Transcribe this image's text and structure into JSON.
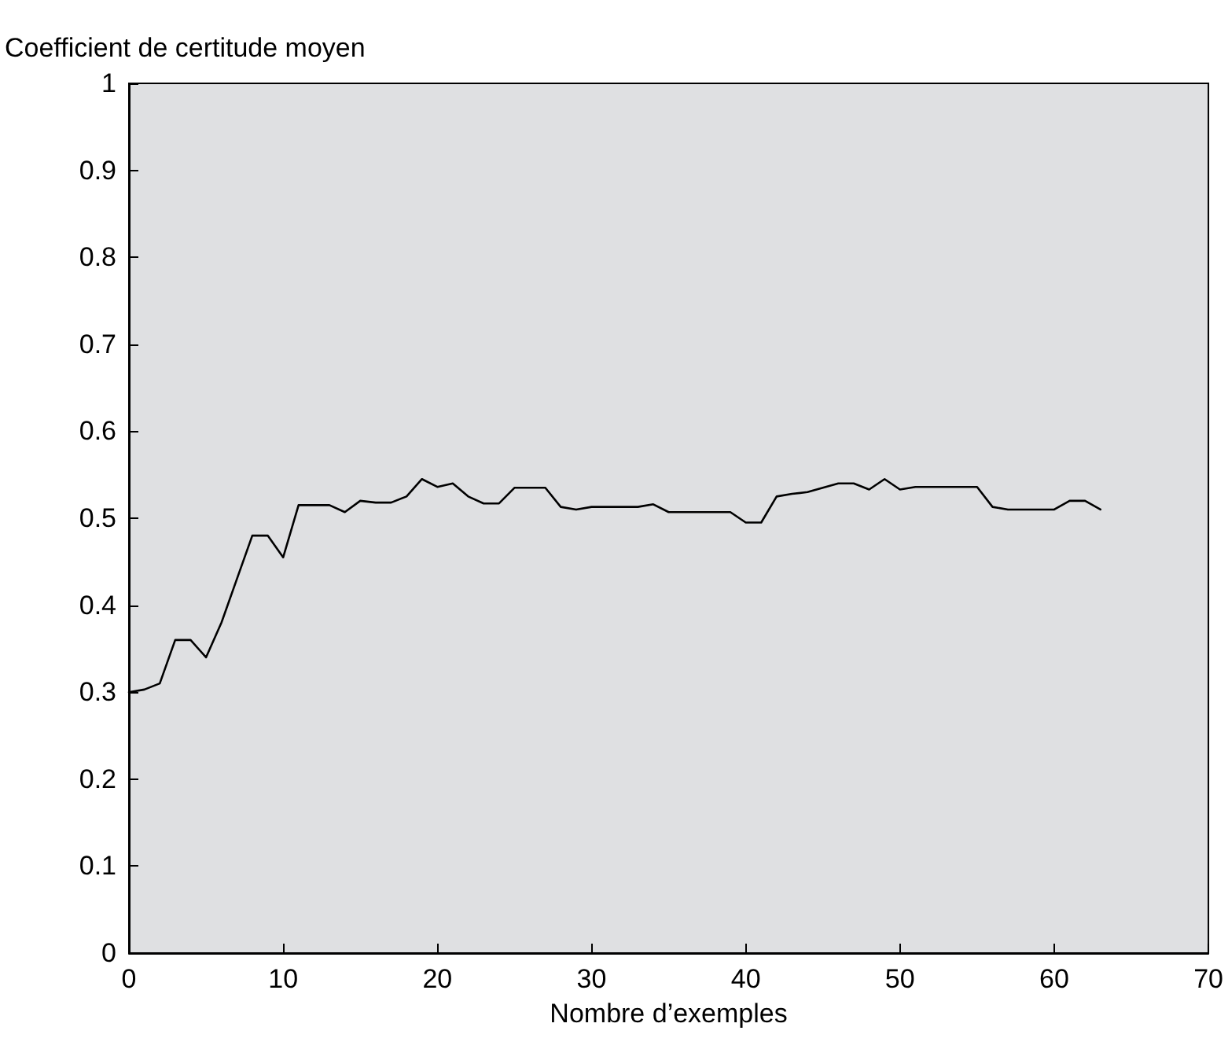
{
  "chart_data": {
    "type": "line",
    "xlabel": "Nombre d’exemples",
    "ylabel": "Coefficient de certitude moyen",
    "x": [
      0,
      1,
      2,
      3,
      4,
      5,
      6,
      7,
      8,
      9,
      10,
      11,
      12,
      13,
      14,
      15,
      16,
      17,
      18,
      19,
      20,
      21,
      22,
      23,
      24,
      25,
      26,
      27,
      28,
      29,
      30,
      31,
      32,
      33,
      34,
      35,
      36,
      37,
      38,
      39,
      40,
      41,
      42,
      43,
      44,
      45,
      46,
      47,
      48,
      49,
      50,
      51,
      52,
      53,
      54,
      55,
      56,
      57,
      58,
      59,
      60,
      61,
      62,
      63
    ],
    "series": [
      {
        "color": "#000000",
        "values": [
          0.3,
          0.303,
          0.31,
          0.36,
          0.36,
          0.34,
          0.38,
          0.43,
          0.48,
          0.48,
          0.455,
          0.515,
          0.515,
          0.515,
          0.507,
          0.52,
          0.518,
          0.518,
          0.525,
          0.545,
          0.536,
          0.54,
          0.525,
          0.517,
          0.517,
          0.535,
          0.535,
          0.535,
          0.513,
          0.51,
          0.513,
          0.513,
          0.513,
          0.513,
          0.516,
          0.507,
          0.507,
          0.507,
          0.507,
          0.507,
          0.495,
          0.495,
          0.525,
          0.528,
          0.53,
          0.535,
          0.54,
          0.54,
          0.533,
          0.545,
          0.533,
          0.536,
          0.536,
          0.536,
          0.536,
          0.536,
          0.513,
          0.51,
          0.51,
          0.51,
          0.51,
          0.52,
          0.52,
          0.51
        ]
      }
    ],
    "xlim": [
      0,
      70
    ],
    "xticks": [
      0,
      10,
      20,
      30,
      40,
      50,
      60,
      70
    ],
    "ylim": [
      0,
      1
    ],
    "yticks": [
      0,
      0.1,
      0.2,
      0.3,
      0.4,
      0.5,
      0.6,
      0.7,
      0.8,
      0.9,
      1
    ],
    "grid": false,
    "marker": "none",
    "line_style": "solid"
  }
}
